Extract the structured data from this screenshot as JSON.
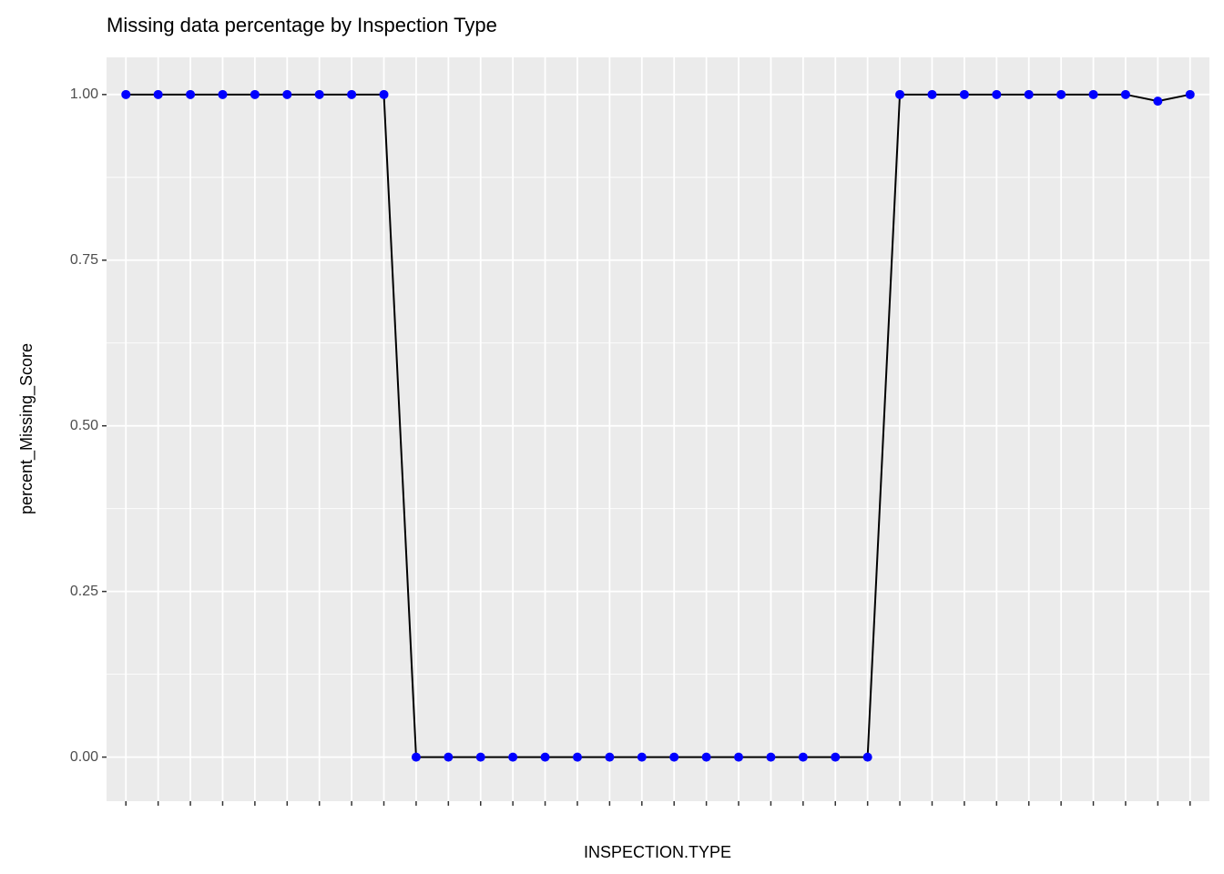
{
  "chart_data": {
    "type": "line",
    "title": "Missing data percentage by Inspection Type",
    "x_label": "INSPECTION.TYPE",
    "y_label": "percent_Missing_Score",
    "categories": [
      null,
      null,
      null,
      null,
      null,
      null,
      null,
      null,
      null,
      null,
      null,
      null,
      null,
      null,
      null,
      null,
      null,
      null,
      null,
      null,
      null,
      null,
      null,
      null,
      null,
      null,
      null,
      null,
      null,
      null,
      null,
      null,
      null,
      null
    ],
    "series": [
      {
        "name": "percent_Missing_Score",
        "color": "#000000",
        "point_color": "#0000ff",
        "values": [
          1,
          1,
          1,
          1,
          1,
          1,
          1,
          1,
          1,
          0,
          0,
          0,
          0,
          0,
          0,
          0,
          0,
          0,
          0,
          0,
          0,
          0,
          0,
          0,
          1,
          1,
          1,
          1,
          1,
          1,
          1,
          1,
          0.99,
          1
        ]
      }
    ],
    "ylim": [
      -0.0665,
      1.0561
    ],
    "yticks": [
      {
        "value": 0,
        "label": "0.00"
      },
      0.25,
      {
        "value": 0.5,
        "label": "0.50"
      },
      0.75,
      {
        "value": 1,
        "label": "1.00"
      }
    ],
    "grid": true
  }
}
